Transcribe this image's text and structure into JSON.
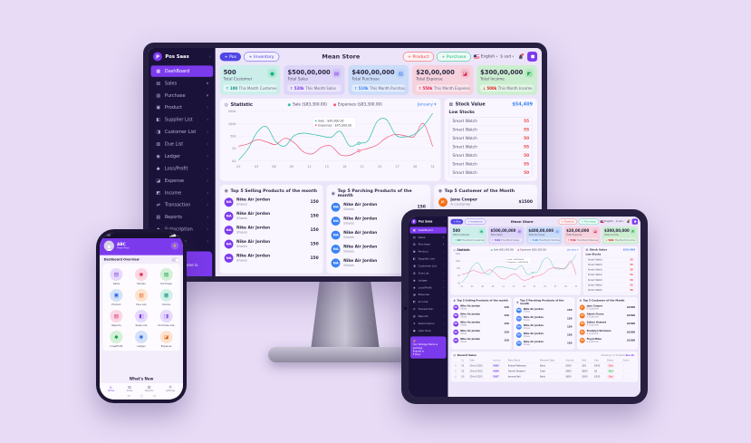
{
  "scene": {
    "background": "#e7dbf6"
  },
  "dashboard": {
    "brand": {
      "name": "Pos Saas",
      "logo_letter": "P"
    },
    "sidebar": {
      "items": [
        {
          "label": "DashBoard",
          "icon": "dashboard-icon",
          "chevron": "right",
          "active": true
        },
        {
          "label": "Sales",
          "icon": "sales-icon",
          "chevron": "down",
          "active": false
        },
        {
          "label": "Purchase",
          "icon": "purchase-icon",
          "chevron": "down",
          "active": false
        },
        {
          "label": "Product",
          "icon": "product-icon",
          "chevron": "right",
          "active": false
        },
        {
          "label": "Supplier List",
          "icon": "supplier-icon",
          "chevron": "right",
          "active": false
        },
        {
          "label": "Customer List",
          "icon": "customer-icon",
          "chevron": "right",
          "active": false
        },
        {
          "label": "Due List",
          "icon": "due-icon",
          "chevron": "right",
          "active": false
        },
        {
          "label": "Ledger",
          "icon": "ledger-icon",
          "chevron": "right",
          "active": false
        },
        {
          "label": "Loss/Profit",
          "icon": "loss-profit-icon",
          "chevron": "right",
          "active": false
        },
        {
          "label": "Expense",
          "icon": "expense-icon",
          "chevron": "right",
          "active": false
        },
        {
          "label": "Income",
          "icon": "income-icon",
          "chevron": "right",
          "active": false
        },
        {
          "label": "Transaction",
          "icon": "transaction-icon",
          "chevron": "right",
          "active": false
        },
        {
          "label": "Reports",
          "icon": "reports-icon",
          "chevron": "right",
          "active": false
        },
        {
          "label": "Subscription",
          "icon": "subscription-icon",
          "chevron": "right",
          "active": false
        },
        {
          "label": "User Role",
          "icon": "user-role-icon",
          "chevron": "right",
          "active": false
        }
      ],
      "package_box": {
        "title": "Your Package Name is package",
        "line2": "Expired in",
        "line3": "5 Days"
      }
    },
    "topbar": {
      "pos_button": "+ Pos",
      "inventory_button": "+ Inventory",
      "title": "Mean Store",
      "product_button": "+ Product",
      "purchase_button": "+ Purchase",
      "language": "English",
      "currency": "$ usd"
    },
    "stats": [
      {
        "value": "500",
        "label": "Total Customer",
        "chip_value": "↑ 100",
        "chip_text": "This Month Customer",
        "bg": "#cbeeea",
        "chip_bg": "#e1f6f3",
        "icon": "customers-icon",
        "icon_bg": "#b4e6d6",
        "icon_color": "#10b981",
        "accent": "#0d9488"
      },
      {
        "value": "$500,00,000",
        "label": "Total Sales",
        "chip_value": "↑ 520k",
        "chip_text": "This Month Sales",
        "bg": "#ddd5f8",
        "chip_bg": "#ece6fb",
        "icon": "sales-bag-icon",
        "icon_bg": "#d2c4f5",
        "icon_color": "#7c3aed",
        "accent": "#7c3aed"
      },
      {
        "value": "$400,00,000",
        "label": "Total Purchase",
        "chip_value": "↑ 510k",
        "chip_text": "This Month Purchase",
        "bg": "#cbdcf9",
        "chip_bg": "#e2ecfc",
        "icon": "purchase-cart-icon",
        "icon_bg": "#c0d4f7",
        "icon_color": "#3b82f6",
        "accent": "#3b82f6"
      },
      {
        "value": "$20,00,000",
        "label": "Total Expense",
        "chip_value": "↑ 550k",
        "chip_text": "This Month Expense",
        "bg": "#f5d2dd",
        "chip_bg": "#fae4eb",
        "icon": "expense-wallet-icon",
        "icon_bg": "#f2c0d0",
        "icon_color": "#e11d48",
        "accent": "#e11d48"
      },
      {
        "value": "$300,00,000",
        "label": "Total Income",
        "chip_value": "↓ 500k",
        "chip_text": "This Month Income",
        "bg": "#cceed0",
        "chip_bg": "#e2f6e4",
        "icon": "income-bag-icon",
        "icon_bg": "#b9e8c2",
        "icon_color": "#16a34a",
        "accent": "#dc2626"
      }
    ],
    "statistic": {
      "title": "Statistic",
      "month_filter": "January",
      "tooltip_sale": "Sale : $45,000.00",
      "tooltip_expenses": "Expenses : $45,000.00"
    },
    "chart_data": {
      "type": "line",
      "title": "Statistic",
      "xlabel": "",
      "ylabel": "",
      "ylim": [
        0,
        500
      ],
      "grid": true,
      "legend_position": "top",
      "month_filter": "January",
      "yticks": [
        "500k",
        "100k",
        "50k",
        "20",
        "00"
      ],
      "xticks": [
        "01",
        "03",
        "06",
        "09",
        "12",
        "15",
        "18",
        "21",
        "24",
        "27",
        "28",
        "31"
      ],
      "series": [
        {
          "name": "Sale",
          "total_label": "Sale  ($83,300.00)",
          "color": "#2fbfa7",
          "values_k": [
            10,
            120,
            290,
            345,
            195,
            150,
            255,
            280,
            268,
            250,
            238,
            298,
            152,
            178,
            205,
            398,
            418,
            262,
            242,
            268,
            352,
            478
          ]
        },
        {
          "name": "Expenses",
          "total_label": "Expenses  ($83,300.00)",
          "color": "#f4587a",
          "values_k": [
            148,
            172,
            214,
            192,
            166,
            228,
            184,
            92,
            72,
            140,
            150,
            62,
            56,
            100,
            126,
            162,
            234,
            268,
            254,
            246,
            378,
            148
          ]
        }
      ]
    },
    "stock": {
      "title": "Stock Value",
      "total": "$54,409",
      "subtitle": "Low Stocks",
      "items": [
        {
          "name": "Smart Watch",
          "qty": "55"
        },
        {
          "name": "Smart Watch",
          "qty": "55"
        },
        {
          "name": "Smart Watch",
          "qty": "50"
        },
        {
          "name": "Smart Watch",
          "qty": "55"
        },
        {
          "name": "Smart Watch",
          "qty": "50"
        },
        {
          "name": "Smart Watch",
          "qty": "55"
        },
        {
          "name": "Smart Watch",
          "qty": "50"
        }
      ]
    },
    "top5_selling": {
      "title": "Top 5 Selling Products of the month",
      "avatar_bg": "#7c3aed",
      "items": [
        {
          "name": "Nike Air Jordan",
          "sub": "Shoes",
          "value": "150"
        },
        {
          "name": "Nike Air Jordan",
          "sub": "Shoes",
          "value": "150"
        },
        {
          "name": "Nike Air Jordan",
          "sub": "Shoes",
          "value": "150"
        },
        {
          "name": "Nike Air Jordan",
          "sub": "Shoes",
          "value": "150"
        },
        {
          "name": "Nike Air Jordan",
          "sub": "Shoes",
          "value": "150"
        }
      ]
    },
    "top5_purchasing": {
      "title": "Top 5 Parching Products of the month",
      "avatar_bg": "#3b82f6",
      "items": [
        {
          "name": "Nike Air Jordan",
          "sub": "Shoes",
          "value": "150"
        },
        {
          "name": "Nike Air Jordan",
          "sub": "Shoes",
          "value": "150"
        },
        {
          "name": "Nike Air Jordan",
          "sub": "Shoes",
          "value": "150"
        },
        {
          "name": "Nike Air Jordan",
          "sub": "Shoes",
          "value": "150"
        },
        {
          "name": "Nike Air Jordan",
          "sub": "Shoes",
          "value": "150"
        }
      ]
    },
    "top5_customers": {
      "title": "Top 5 Customer of the Month",
      "avatar_bg": "#f97316",
      "items": [
        {
          "name": "Jane Cooper",
          "sub": "A Customer",
          "value": "$1500"
        },
        {
          "name": "Albert Flores",
          "sub": "A Customer",
          "value": "$1500"
        },
        {
          "name": "Esther Howard",
          "sub": "A Customer",
          "value": "$1500"
        },
        {
          "name": "Brooklyn Simmons",
          "sub": "A Customer",
          "value": "$1500"
        },
        {
          "name": "Floyd Miles",
          "sub": "A Customer",
          "value": "$1500"
        }
      ]
    },
    "recent_sales": {
      "title": "Recent Sales",
      "showing": "Showing 1 of 10 items",
      "see_all": "See all ›",
      "columns": [
        "SL",
        "Date",
        "Invoice",
        "Party Name",
        "Payment Type",
        "Amount",
        "Paid",
        "Due",
        "Status",
        "Action"
      ],
      "rows": [
        [
          "01",
          "20-Jul-2023",
          "5085",
          "Robert Patterson",
          "Bank",
          "$500",
          "$50",
          "$450",
          "Due"
        ],
        [
          "02",
          "20-Jul-2023",
          "5086",
          "Darrell Steward",
          "Cash",
          "$800",
          "$800",
          "$0",
          "Paid"
        ],
        [
          "03",
          "20-Jul-2023",
          "5087",
          "Jerome Bell",
          "Bank",
          "$650",
          "$300",
          "$350",
          "Due"
        ]
      ]
    }
  },
  "phone": {
    "status_time": "7:00",
    "header": {
      "name": "ABC",
      "plan": "Free Plan"
    },
    "overview_label": "Dashboard Overview",
    "grid": [
      {
        "label": "Sales",
        "icon": "sales-icon",
        "bg": "#e6d9fb",
        "color": "#7c3aed"
      },
      {
        "label": "Parties",
        "icon": "parties-icon",
        "bg": "#fbd7e3",
        "color": "#e11d48"
      },
      {
        "label": "Purchase",
        "icon": "purchase-icon",
        "bg": "#d2f0d6",
        "color": "#16a34a"
      },
      {
        "label": "Product",
        "icon": "product-icon",
        "bg": "#d3e2fa",
        "color": "#2563eb"
      },
      {
        "label": "Due List",
        "icon": "due-list-icon",
        "bg": "#fde3cf",
        "color": "#ea580c"
      },
      {
        "label": "Stocks",
        "icon": "stocks-icon",
        "bg": "#d2f0e6",
        "color": "#0d9488"
      },
      {
        "label": "Reports",
        "icon": "reports-icon",
        "bg": "#fbd7e3",
        "color": "#db2777"
      },
      {
        "label": "Sales List",
        "icon": "sales-list-icon",
        "bg": "#e6d9fb",
        "color": "#7c3aed"
      },
      {
        "label": "Purchase List",
        "icon": "purchase-list-icon",
        "bg": "#e6d9fb",
        "color": "#8b5cf6"
      },
      {
        "label": "Loss/Profit",
        "icon": "loss-profit-icon",
        "bg": "#d2f0d6",
        "color": "#16a34a"
      },
      {
        "label": "Ledger",
        "icon": "ledger-icon",
        "bg": "#d3e2fa",
        "color": "#2563eb"
      },
      {
        "label": "Expense",
        "icon": "expense-icon",
        "bg": "#fde3cf",
        "color": "#ea580c"
      }
    ],
    "whats_new": "What's New",
    "nav": [
      {
        "label": "Home",
        "icon": "home-icon",
        "active": true
      },
      {
        "label": "Sales",
        "icon": "cart-icon",
        "active": false
      },
      {
        "label": "Reports",
        "icon": "reports-icon",
        "active": false
      },
      {
        "label": "Settings",
        "icon": "settings-icon",
        "active": false
      }
    ]
  }
}
